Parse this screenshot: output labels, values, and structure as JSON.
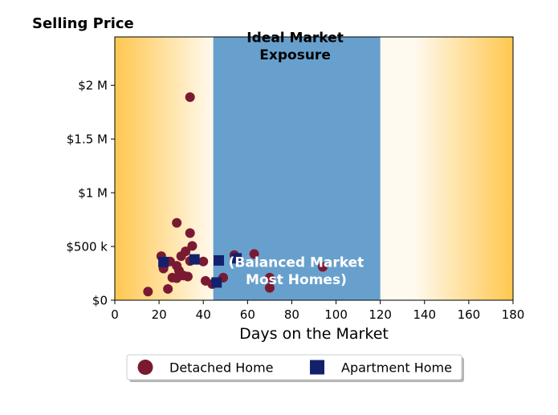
{
  "chart_data": {
    "type": "scatter",
    "title": "Selling Price",
    "xlabel": "Days on the Market",
    "ylabel": "",
    "xlim": [
      0,
      180
    ],
    "ylim": [
      0,
      2450000
    ],
    "x_ticks": [
      {
        "value": 0,
        "label": "0"
      },
      {
        "value": 20,
        "label": "20"
      },
      {
        "value": 40,
        "label": "40"
      },
      {
        "value": 60,
        "label": "60"
      },
      {
        "value": 80,
        "label": "80"
      },
      {
        "value": 100,
        "label": "100"
      },
      {
        "value": 120,
        "label": "120"
      },
      {
        "value": 140,
        "label": "140"
      },
      {
        "value": 160,
        "label": "160"
      },
      {
        "value": 180,
        "label": "180"
      }
    ],
    "y_ticks": [
      {
        "value": 0,
        "label": "$0"
      },
      {
        "value": 500000,
        "label": "$500 k"
      },
      {
        "value": 1000000,
        "label": "$1 M"
      },
      {
        "value": 1500000,
        "label": "$1.5 M"
      },
      {
        "value": 2000000,
        "label": "$2 M"
      }
    ],
    "grid": false,
    "legend_position": "bottom-center",
    "ideal_band": {
      "x_start": 44.5,
      "x_end": 120,
      "color": "#68a0cd"
    },
    "background_gradient": {
      "edge_color": "#ffc74f",
      "mid_color": "#fffaf0"
    },
    "annotations": [
      {
        "text": "Ideal Market",
        "x": 81.5,
        "y": 2400000,
        "color": "#000000"
      },
      {
        "text": "Exposure",
        "x": 81.5,
        "y": 2240000,
        "color": "#000000"
      },
      {
        "text": "(Balanced Market",
        "x": 82,
        "y": 310000,
        "color": "#ffffff"
      },
      {
        "text": "Most Homes)",
        "x": 82,
        "y": 150000,
        "color": "#ffffff"
      }
    ],
    "series": [
      {
        "name": "Detached Home",
        "marker": "circle",
        "color": "#7a1a32",
        "points": [
          [
            34,
            1890000
          ],
          [
            28,
            720000
          ],
          [
            34,
            625000
          ],
          [
            35,
            505000
          ],
          [
            32,
            455000
          ],
          [
            30,
            410000
          ],
          [
            21,
            410000
          ],
          [
            25,
            360000
          ],
          [
            28,
            320000
          ],
          [
            22,
            295000
          ],
          [
            29,
            275000
          ],
          [
            31,
            230000
          ],
          [
            33,
            220000
          ],
          [
            26,
            210000
          ],
          [
            28,
            205000
          ],
          [
            34,
            365000
          ],
          [
            40,
            360000
          ],
          [
            41,
            180000
          ],
          [
            44,
            150000
          ],
          [
            49,
            210000
          ],
          [
            54,
            420000
          ],
          [
            63,
            430000
          ],
          [
            70,
            210000
          ],
          [
            70,
            115000
          ],
          [
            15,
            80000
          ],
          [
            24,
            105000
          ],
          [
            94,
            310000
          ]
        ]
      },
      {
        "name": "Apartment Home",
        "marker": "square",
        "color": "#13216d",
        "points": [
          [
            22,
            355000
          ],
          [
            36,
            380000
          ],
          [
            47,
            370000
          ],
          [
            55,
            390000
          ],
          [
            46,
            165000
          ]
        ]
      }
    ]
  }
}
